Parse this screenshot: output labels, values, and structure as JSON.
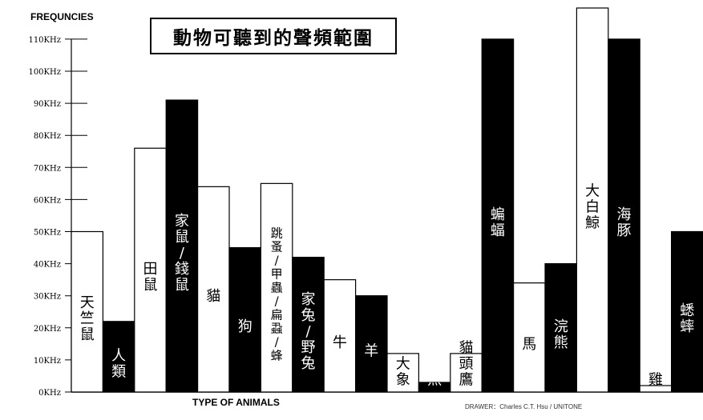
{
  "chart_data": {
    "type": "bar",
    "title": "動物可聽到的聲頻範圍",
    "xlabel": "TYPE OF ANIMALS",
    "ylabel": "FREQUNCIES",
    "credit": "DRAWER：Charles C.T. Hsu / UNITONE",
    "y_ticks": [
      "0KHz",
      "10KHz",
      "20KHz",
      "30KHz",
      "40KHz",
      "50KHz",
      "60KHz",
      "70KHz",
      "80KHz",
      "90KHz",
      "100KHz",
      "110KHz"
    ],
    "ylim": [
      0,
      120
    ],
    "y_unit": "KHz",
    "categories": [
      "天竺鼠",
      "人類",
      "田鼠",
      "家鼠/錢鼠",
      "貓",
      "狗",
      "跳蚤/甲蟲/扁蝨/蜂",
      "家兔/野兔",
      "牛",
      "羊",
      "大象",
      "金魚",
      "貓頭鷹",
      "蝙蝠",
      "馬",
      "浣熊",
      "大白鯨",
      "海豚",
      "雞",
      "蟋蟀"
    ],
    "values": [
      50,
      22,
      76,
      91,
      64,
      45,
      65,
      42,
      35,
      30,
      12,
      3,
      12,
      110,
      34,
      40,
      120,
      110,
      2,
      50
    ],
    "fills": [
      "white",
      "black",
      "white",
      "black",
      "white",
      "black",
      "white",
      "black",
      "white",
      "black",
      "white",
      "black",
      "white",
      "black",
      "white",
      "black",
      "white",
      "black",
      "white",
      "black"
    ]
  }
}
